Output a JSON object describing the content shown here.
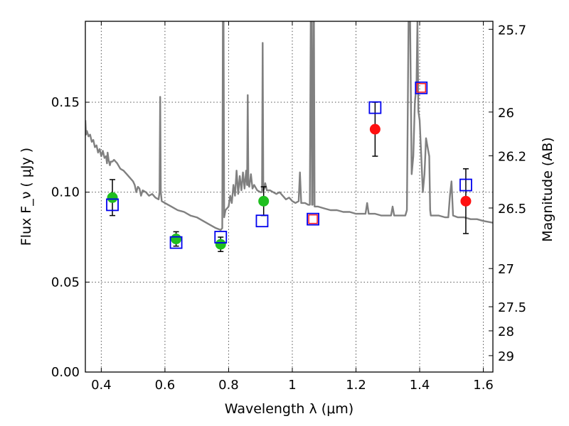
{
  "chart_data": {
    "type": "scatter",
    "xlabel": "Wavelength  λ (μm)",
    "ylabel": "Flux  F_ν  ( μJy )",
    "ylabel_right": "Magnitude (AB)",
    "xlim": [
      0.35,
      1.63
    ],
    "ylim": [
      0.0,
      0.195
    ],
    "grid": true,
    "x_ticks": [
      0.4,
      0.6,
      0.8,
      1.0,
      1.2,
      1.4,
      1.6
    ],
    "x_tick_labels": [
      "0.4",
      "0.6",
      "0.8",
      "1",
      "1.2",
      "1.4",
      "1.6"
    ],
    "y_ticks": [
      0.0,
      0.05,
      0.1,
      0.15
    ],
    "y_tick_labels": [
      "0.00",
      "0.05",
      "0.10",
      "0.15"
    ],
    "right_ticks": [
      {
        "label": "25.7",
        "mag": 25.7
      },
      {
        "label": "26",
        "mag": 26.0
      },
      {
        "label": "26.2",
        "mag": 26.2
      },
      {
        "label": "26.5",
        "mag": 26.5
      },
      {
        "label": "27",
        "mag": 27.0
      },
      {
        "label": "27.5",
        "mag": 27.5
      },
      {
        "label": "28",
        "mag": 28.0
      },
      {
        "label": "29",
        "mag": 29.0
      }
    ],
    "colors": {
      "model": "#808080",
      "green": "#1fbf1f",
      "red": "#ff1010",
      "blue": "#0000ee",
      "redsq": "#ff2020",
      "grid": "#555555"
    },
    "model_spectrum": [
      [
        0.35,
        0.14
      ],
      [
        0.352,
        0.132
      ],
      [
        0.355,
        0.134
      ],
      [
        0.36,
        0.131
      ],
      [
        0.365,
        0.132
      ],
      [
        0.37,
        0.128
      ],
      [
        0.375,
        0.129
      ],
      [
        0.38,
        0.125
      ],
      [
        0.385,
        0.126
      ],
      [
        0.39,
        0.122
      ],
      [
        0.395,
        0.124
      ],
      [
        0.4,
        0.12
      ],
      [
        0.405,
        0.123
      ],
      [
        0.41,
        0.119
      ],
      [
        0.415,
        0.12
      ],
      [
        0.418,
        0.116
      ],
      [
        0.42,
        0.122
      ],
      [
        0.423,
        0.118
      ],
      [
        0.427,
        0.115
      ],
      [
        0.43,
        0.117
      ],
      [
        0.435,
        0.117
      ],
      [
        0.44,
        0.118
      ],
      [
        0.45,
        0.116
      ],
      [
        0.46,
        0.113
      ],
      [
        0.47,
        0.112
      ],
      [
        0.48,
        0.11
      ],
      [
        0.49,
        0.108
      ],
      [
        0.5,
        0.106
      ],
      [
        0.505,
        0.104
      ],
      [
        0.51,
        0.1
      ],
      [
        0.515,
        0.103
      ],
      [
        0.52,
        0.102
      ],
      [
        0.525,
        0.098
      ],
      [
        0.53,
        0.101
      ],
      [
        0.54,
        0.1
      ],
      [
        0.55,
        0.098
      ],
      [
        0.56,
        0.099
      ],
      [
        0.57,
        0.097
      ],
      [
        0.58,
        0.096
      ],
      [
        0.583,
        0.1
      ],
      [
        0.585,
        0.153
      ],
      [
        0.587,
        0.1
      ],
      [
        0.59,
        0.095
      ],
      [
        0.6,
        0.094
      ],
      [
        0.62,
        0.092
      ],
      [
        0.64,
        0.09
      ],
      [
        0.66,
        0.089
      ],
      [
        0.68,
        0.087
      ],
      [
        0.7,
        0.086
      ],
      [
        0.72,
        0.084
      ],
      [
        0.74,
        0.082
      ],
      [
        0.76,
        0.08
      ],
      [
        0.775,
        0.079
      ],
      [
        0.78,
        0.08
      ],
      [
        0.782,
        0.195
      ],
      [
        0.784,
        0.195
      ],
      [
        0.786,
        0.086
      ],
      [
        0.79,
        0.09
      ],
      [
        0.8,
        0.092
      ],
      [
        0.805,
        0.098
      ],
      [
        0.81,
        0.094
      ],
      [
        0.815,
        0.104
      ],
      [
        0.82,
        0.098
      ],
      [
        0.825,
        0.112
      ],
      [
        0.83,
        0.099
      ],
      [
        0.835,
        0.109
      ],
      [
        0.84,
        0.101
      ],
      [
        0.845,
        0.111
      ],
      [
        0.85,
        0.102
      ],
      [
        0.855,
        0.112
      ],
      [
        0.858,
        0.104
      ],
      [
        0.86,
        0.154
      ],
      [
        0.862,
        0.104
      ],
      [
        0.865,
        0.103
      ],
      [
        0.87,
        0.11
      ],
      [
        0.875,
        0.102
      ],
      [
        0.88,
        0.104
      ],
      [
        0.89,
        0.101
      ],
      [
        0.9,
        0.1
      ],
      [
        0.905,
        0.1
      ],
      [
        0.907,
        0.183
      ],
      [
        0.909,
        0.101
      ],
      [
        0.912,
        0.102
      ],
      [
        0.915,
        0.105
      ],
      [
        0.92,
        0.101
      ],
      [
        0.93,
        0.101
      ],
      [
        0.94,
        0.1
      ],
      [
        0.95,
        0.099
      ],
      [
        0.96,
        0.1
      ],
      [
        0.97,
        0.098
      ],
      [
        0.98,
        0.096
      ],
      [
        0.99,
        0.097
      ],
      [
        1.0,
        0.095
      ],
      [
        1.01,
        0.094
      ],
      [
        1.02,
        0.095
      ],
      [
        1.024,
        0.111
      ],
      [
        1.028,
        0.094
      ],
      [
        1.04,
        0.094
      ],
      [
        1.05,
        0.093
      ],
      [
        1.055,
        0.093
      ],
      [
        1.058,
        0.195
      ],
      [
        1.06,
        0.195
      ],
      [
        1.062,
        0.093
      ],
      [
        1.064,
        0.093
      ],
      [
        1.066,
        0.195
      ],
      [
        1.068,
        0.195
      ],
      [
        1.07,
        0.092
      ],
      [
        1.08,
        0.092
      ],
      [
        1.1,
        0.091
      ],
      [
        1.12,
        0.09
      ],
      [
        1.14,
        0.09
      ],
      [
        1.16,
        0.089
      ],
      [
        1.18,
        0.089
      ],
      [
        1.2,
        0.088
      ],
      [
        1.22,
        0.088
      ],
      [
        1.23,
        0.088
      ],
      [
        1.235,
        0.094
      ],
      [
        1.24,
        0.088
      ],
      [
        1.26,
        0.088
      ],
      [
        1.28,
        0.087
      ],
      [
        1.3,
        0.087
      ],
      [
        1.31,
        0.087
      ],
      [
        1.315,
        0.092
      ],
      [
        1.32,
        0.087
      ],
      [
        1.34,
        0.087
      ],
      [
        1.355,
        0.087
      ],
      [
        1.36,
        0.09
      ],
      [
        1.365,
        0.195
      ],
      [
        1.37,
        0.195
      ],
      [
        1.375,
        0.11
      ],
      [
        1.38,
        0.12
      ],
      [
        1.385,
        0.15
      ],
      [
        1.39,
        0.16
      ],
      [
        1.393,
        0.195
      ],
      [
        1.396,
        0.145
      ],
      [
        1.4,
        0.14
      ],
      [
        1.405,
        0.12
      ],
      [
        1.41,
        0.1
      ],
      [
        1.415,
        0.11
      ],
      [
        1.42,
        0.13
      ],
      [
        1.425,
        0.125
      ],
      [
        1.43,
        0.12
      ],
      [
        1.433,
        0.09
      ],
      [
        1.435,
        0.087
      ],
      [
        1.44,
        0.087
      ],
      [
        1.46,
        0.087
      ],
      [
        1.48,
        0.086
      ],
      [
        1.49,
        0.086
      ],
      [
        1.495,
        0.098
      ],
      [
        1.5,
        0.106
      ],
      [
        1.505,
        0.087
      ],
      [
        1.52,
        0.086
      ],
      [
        1.54,
        0.086
      ],
      [
        1.56,
        0.085
      ],
      [
        1.58,
        0.085
      ],
      [
        1.6,
        0.084
      ],
      [
        1.63,
        0.083
      ]
    ],
    "green_points": [
      {
        "x": 0.435,
        "y": 0.097,
        "err": 0.01
      },
      {
        "x": 0.635,
        "y": 0.074,
        "err": 0.004
      },
      {
        "x": 0.775,
        "y": 0.071,
        "err": 0.004
      },
      {
        "x": 0.91,
        "y": 0.095,
        "err": 0.008
      }
    ],
    "red_points": [
      {
        "x": 1.26,
        "y": 0.135,
        "err": 0.015
      },
      {
        "x": 1.545,
        "y": 0.095,
        "err": 0.018
      }
    ],
    "blue_squares": [
      {
        "x": 0.435,
        "y": 0.093
      },
      {
        "x": 0.635,
        "y": 0.072
      },
      {
        "x": 0.775,
        "y": 0.075
      },
      {
        "x": 0.905,
        "y": 0.084
      },
      {
        "x": 1.065,
        "y": 0.085
      },
      {
        "x": 1.26,
        "y": 0.147
      },
      {
        "x": 1.405,
        "y": 0.158
      },
      {
        "x": 1.545,
        "y": 0.104
      }
    ],
    "red_squares": [
      {
        "x": 1.065,
        "y": 0.085
      },
      {
        "x": 1.405,
        "y": 0.158
      }
    ]
  }
}
